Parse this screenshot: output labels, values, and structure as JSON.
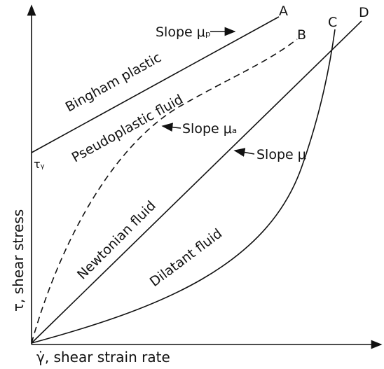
{
  "axes": {
    "y_label": "τ, shear stress",
    "x_label": "γ̇, shear strain rate"
  },
  "curves": [
    {
      "end_label": "A",
      "name": "Bingham plastic"
    },
    {
      "end_label": "B",
      "name": "Pseudoplastic fluid"
    },
    {
      "end_label": "C",
      "name": "Dilatant fluid"
    },
    {
      "end_label": "D",
      "name": "Newtonian fluid"
    }
  ],
  "annotations": {
    "slope_bingham": "Slope μₚ",
    "slope_pseudo": "Slope μₐ",
    "slope_newton": "Slope μ",
    "yield_stress": "τᵧ"
  }
}
